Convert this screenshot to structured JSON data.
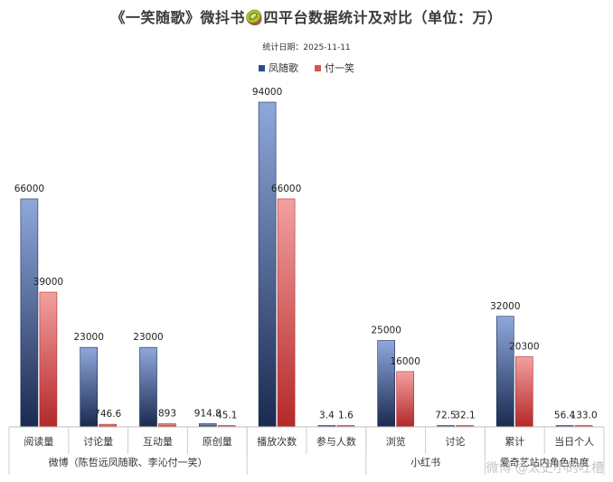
{
  "title": "《一笑随歌》微抖书🥝四平台数据统计及对比（单位：万）",
  "subtitle": "统计日期：2025-11-11",
  "watermark": "微博 @太史小的吐槽",
  "colors": {
    "series1": "#2e4d8f",
    "series2": "#d9534f"
  },
  "chart_data": {
    "type": "bar",
    "categories": [
      "阅读量",
      "讨论量",
      "互动量",
      "原创量",
      "播放次数",
      "参与人数",
      "浏览",
      "讨论",
      "累计",
      "当日个人"
    ],
    "groups": [
      {
        "label": "微博（陈哲远凤随歌、李沁付一笑）",
        "categories": [
          "阅读量",
          "讨论量",
          "互动量",
          "原创量"
        ]
      },
      {
        "label": "",
        "categories": [
          "播放次数",
          "参与人数"
        ]
      },
      {
        "label": "小红书",
        "categories": [
          "浏览",
          "讨论"
        ]
      },
      {
        "label": "爱奇艺站内角色热度",
        "categories": [
          "累计",
          "当日个人"
        ]
      }
    ],
    "series": [
      {
        "name": "凤随歌",
        "values": [
          66000,
          23000,
          23000,
          914.8,
          94000,
          3.4,
          25000,
          72.5,
          32000,
          56.4
        ],
        "labels": [
          "66000",
          "23000",
          "23000",
          "914.8",
          "94000",
          "3.4",
          "25000",
          "72.5",
          "32000",
          "56.4"
        ]
      },
      {
        "name": "付一笑",
        "values": [
          39000,
          746.6,
          893,
          45.1,
          66000,
          1.6,
          16000,
          32.1,
          20300,
          133.0
        ],
        "labels": [
          "39000",
          "746.6",
          "893",
          "45.1",
          "66000",
          "1.6",
          "16000",
          "32.1",
          "20300",
          "133.0"
        ]
      }
    ],
    "ylim": [
      0,
      94000
    ],
    "grid": false,
    "legend_position": "top-center"
  }
}
